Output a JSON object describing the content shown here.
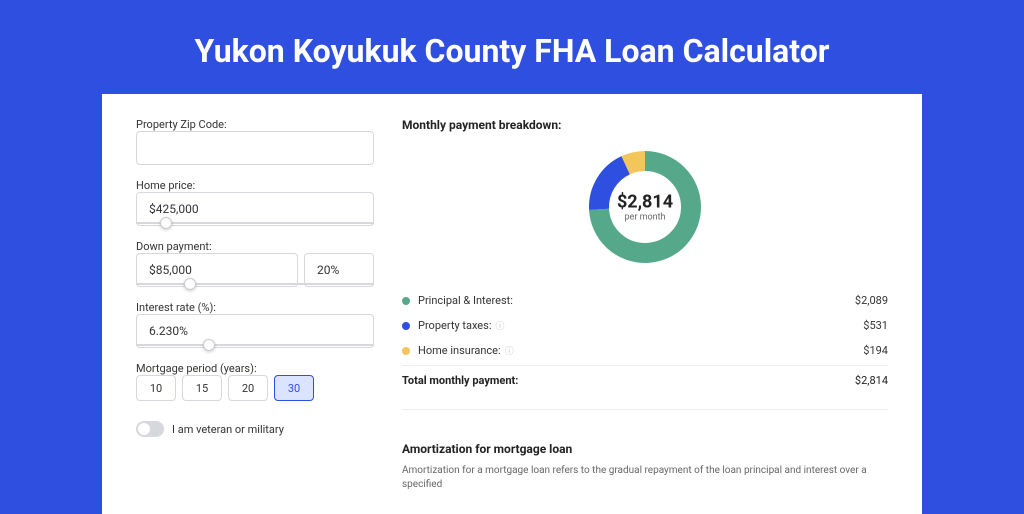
{
  "page": {
    "title": "Yukon Koyukuk County FHA Loan Calculator",
    "bg": "#2f4fe0"
  },
  "form": {
    "zip": {
      "label": "Property Zip Code:",
      "value": ""
    },
    "home_price": {
      "label": "Home price:",
      "value": "$425,000",
      "slider_pos_pct": 10
    },
    "down_payment": {
      "label": "Down payment:",
      "value": "$85,000",
      "pct": "20%",
      "slider_pos_pct": 20
    },
    "interest": {
      "label": "Interest rate (%):",
      "value": "6.230%",
      "slider_pos_pct": 28
    },
    "period": {
      "label": "Mortgage period (years):",
      "options": [
        "10",
        "15",
        "20",
        "30"
      ],
      "selected": "30"
    },
    "veteran": {
      "label": "I am veteran or military",
      "checked": false
    }
  },
  "breakdown": {
    "title": "Monthly payment breakdown:",
    "donut": {
      "amount": "$2,814",
      "sub": "per month",
      "slices": [
        {
          "color": "#55a98a",
          "pct": 74.2
        },
        {
          "color": "#2f4fe0",
          "pct": 18.9
        },
        {
          "color": "#f3c65b",
          "pct": 6.9
        }
      ]
    },
    "items": [
      {
        "label": "Principal & Interest:",
        "value": "$2,089",
        "color": "#55a98a",
        "info": false
      },
      {
        "label": "Property taxes:",
        "value": "$531",
        "color": "#2f4fe0",
        "info": true
      },
      {
        "label": "Home insurance:",
        "value": "$194",
        "color": "#f3c65b",
        "info": true
      }
    ],
    "total": {
      "label": "Total monthly payment:",
      "value": "$2,814"
    }
  },
  "amortization": {
    "title": "Amortization for mortgage loan",
    "text": "Amortization for a mortgage loan refers to the gradual repayment of the loan principal and interest over a specified"
  }
}
